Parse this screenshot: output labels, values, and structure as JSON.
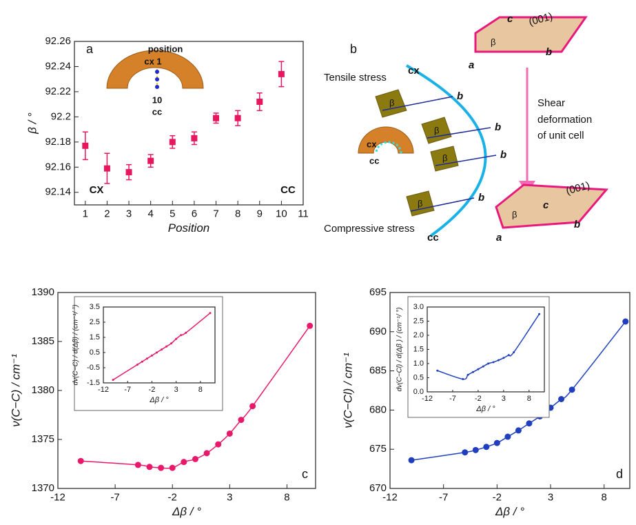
{
  "chart_data": [
    {
      "type": "scatter",
      "label": "a",
      "xlabel": "Position",
      "ylabel": "β / °",
      "xlim": [
        0.5,
        11
      ],
      "xticks": [
        1,
        2,
        3,
        4,
        5,
        6,
        7,
        8,
        9,
        10,
        11
      ],
      "ylim": [
        92.13,
        92.26
      ],
      "yticks": [
        92.14,
        92.16,
        92.18,
        92.2,
        92.22,
        92.24,
        92.26
      ],
      "annotations": [
        "position",
        "cx 1",
        "10",
        "cc",
        "CX",
        "CC"
      ],
      "x": [
        1,
        2,
        3,
        4,
        5,
        6,
        7,
        8,
        9,
        10
      ],
      "series": [
        {
          "color": "#e8175d",
          "marker": "square",
          "values": [
            92.177,
            92.159,
            92.156,
            92.165,
            92.18,
            92.183,
            92.199,
            92.199,
            92.212,
            92.234
          ],
          "errors": [
            0.011,
            0.012,
            0.006,
            0.005,
            0.005,
            0.005,
            0.004,
            0.006,
            0.007,
            0.01
          ]
        }
      ]
    },
    {
      "type": "line",
      "label": "c",
      "xlabel": "Δβ / °",
      "ylabel": "ν(C−C) / cm⁻¹",
      "xlim": [
        -12,
        10.5
      ],
      "xticks": [
        -12,
        -7,
        -2,
        3,
        8
      ],
      "ylim": [
        1370,
        1390
      ],
      "yticks": [
        1370,
        1375,
        1380,
        1385,
        1390
      ],
      "smooth": true,
      "x": [
        -10,
        -5,
        -4,
        -3,
        -2,
        -1,
        0,
        1,
        2,
        3,
        4,
        5,
        10
      ],
      "series": [
        {
          "color": "#e8196a",
          "marker": "circle",
          "values": [
            1372.8,
            1372.4,
            1372.2,
            1372.1,
            1372.1,
            1372.7,
            1373.0,
            1373.6,
            1374.5,
            1375.6,
            1377.0,
            1378.4,
            1386.6
          ]
        }
      ]
    },
    {
      "type": "line",
      "xlabel": "Δβ / °",
      "ylabel": "dν(C−C) / d(Δβ) / (cm⁻¹/ °)",
      "xlim": [
        -12,
        11
      ],
      "xticks": [
        -12,
        -7,
        -2,
        3,
        8
      ],
      "ylim": [
        -1.5,
        3.5
      ],
      "yticks": [
        -1.5,
        -0.5,
        0.5,
        1.5,
        2.5,
        3.5
      ],
      "smooth": true,
      "x": [
        -10,
        -5,
        -4,
        -3,
        -2,
        -1,
        0,
        1,
        2,
        3,
        4,
        5,
        10
      ],
      "series": [
        {
          "color": "#e8196a",
          "marker": "dot",
          "values": [
            -1.3,
            -0.3,
            -0.1,
            0.1,
            0.3,
            0.5,
            0.7,
            0.9,
            1.1,
            1.4,
            1.65,
            1.8,
            3.1
          ]
        }
      ]
    },
    {
      "type": "line",
      "label": "d",
      "xlabel": "Δβ / °",
      "ylabel": "ν(C−Cl) / cm⁻¹",
      "xlim": [
        -12,
        10.4
      ],
      "xticks": [
        -12,
        -7,
        -2,
        3,
        8
      ],
      "ylim": [
        670,
        695
      ],
      "yticks": [
        670,
        675,
        680,
        685,
        690,
        695
      ],
      "smooth": true,
      "x": [
        -10,
        -5,
        -4,
        -3,
        -2,
        -1,
        0,
        1,
        2,
        3,
        4,
        5,
        10
      ],
      "series": [
        {
          "color": "#1f3fbf",
          "marker": "circle",
          "values": [
            673.6,
            674.6,
            674.9,
            675.3,
            675.8,
            676.6,
            677.4,
            678.3,
            679.2,
            680.3,
            681.4,
            682.6,
            691.3
          ]
        }
      ]
    },
    {
      "type": "line",
      "xlabel": "Δβ / °",
      "ylabel": "dν(C−Cl) / d(Δβ ) / (cm⁻¹/ °)",
      "xlim": [
        -12,
        11
      ],
      "xticks": [
        -12,
        -7,
        -2,
        3,
        8
      ],
      "ylim": [
        0,
        3
      ],
      "yticks": [
        {
          "value": 0,
          "label": "0.0"
        },
        0.5,
        {
          "value": 1,
          "label": "1.0"
        },
        1.5,
        {
          "value": 2,
          "label": "2.0"
        },
        2.5,
        {
          "value": 3,
          "label": "3.0"
        }
      ],
      "smooth": true,
      "x": [
        -10,
        -5,
        -4,
        -3,
        -2,
        -1,
        0,
        1,
        2,
        3,
        4,
        5,
        10
      ],
      "series": [
        {
          "color": "#1f3fbf",
          "marker": "dot",
          "values": [
            0.75,
            0.45,
            0.6,
            0.7,
            0.8,
            0.9,
            1.0,
            1.05,
            1.12,
            1.2,
            1.3,
            1.4,
            2.75
          ]
        }
      ]
    }
  ],
  "panel_b": {
    "label": "b",
    "tensile": "Tensile stress",
    "cx": "cx",
    "compressive": "Compressive stress",
    "cc": "cc",
    "shear": [
      "Shear",
      "deformation",
      "of unit cell"
    ],
    "axis_a": "a",
    "axis_b": "b",
    "axis_c": "c",
    "plane": "(001)",
    "angle": "β"
  }
}
